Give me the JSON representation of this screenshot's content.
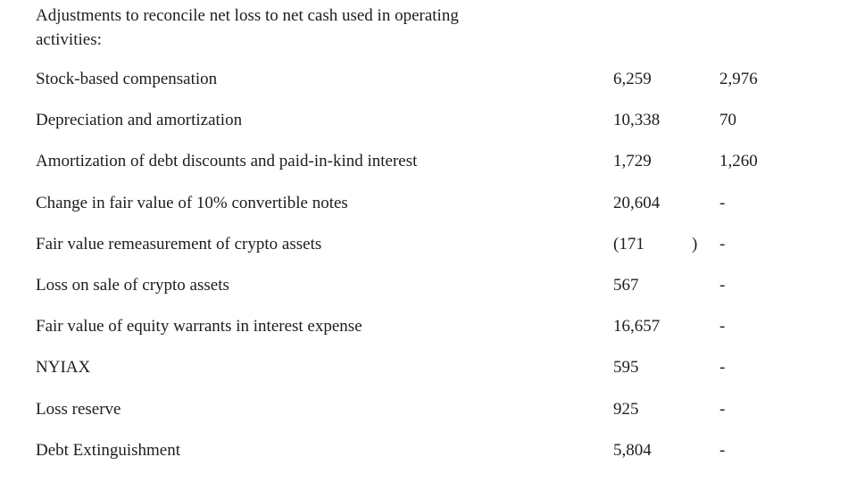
{
  "page": {
    "background": "#ffffff",
    "text_color": "#1d1d1d"
  },
  "table": {
    "section_header_lines": {
      "line1": "Adjustments to reconcile net loss to net cash used in operating",
      "line2": "activities:"
    },
    "rows": [
      {
        "label": "Stock-based compensation",
        "col1": "6,259",
        "col1_close": "",
        "col2": "2,976"
      },
      {
        "label": "Depreciation and amortization",
        "col1": "10,338",
        "col1_close": "",
        "col2": "70"
      },
      {
        "label": "Amortization of debt discounts and paid-in-kind interest",
        "col1": "1,729",
        "col1_close": "",
        "col2": "1,260"
      },
      {
        "label": "Change in fair value of 10% convertible notes",
        "col1": "20,604",
        "col1_close": "",
        "col2": "-"
      },
      {
        "label": "Fair value remeasurement of crypto assets",
        "col1": "(171",
        "col1_close": ")",
        "col2": "-"
      },
      {
        "label": "Loss on sale of crypto assets",
        "col1": "567",
        "col1_close": "",
        "col2": "-"
      },
      {
        "label": "Fair value of equity warrants in interest expense",
        "col1": "16,657",
        "col1_close": "",
        "col2": "-"
      },
      {
        "label": "NYIAX",
        "col1": "595",
        "col1_close": "",
        "col2": "-"
      },
      {
        "label": "Loss reserve",
        "col1": "925",
        "col1_close": "",
        "col2": "-"
      },
      {
        "label": "Debt Extinguishment",
        "col1": "5,804",
        "col1_close": "",
        "col2": "-"
      }
    ]
  }
}
